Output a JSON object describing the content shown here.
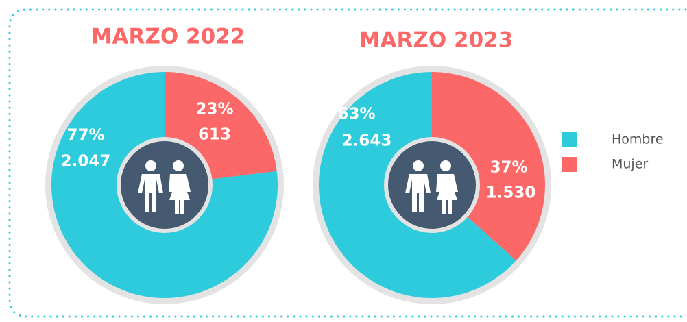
{
  "legend": {
    "labels": [
      "Hombre",
      "Mujer"
    ],
    "colors": [
      "#2ecbdd",
      "#fc6767"
    ]
  },
  "chart_data": [
    {
      "type": "pie",
      "title": "MARZO 2022",
      "values": [
        2047,
        613
      ],
      "value_labels": [
        "2.047",
        "613"
      ],
      "percents": [
        77,
        23
      ],
      "percent_labels": [
        "77%",
        "23%"
      ]
    },
    {
      "type": "pie",
      "title": "MARZO 2023",
      "values": [
        2643,
        1530
      ],
      "value_labels": [
        "2.643",
        "1.530"
      ],
      "percents": [
        63,
        37
      ],
      "percent_labels": [
        "63%",
        "37%"
      ]
    }
  ]
}
